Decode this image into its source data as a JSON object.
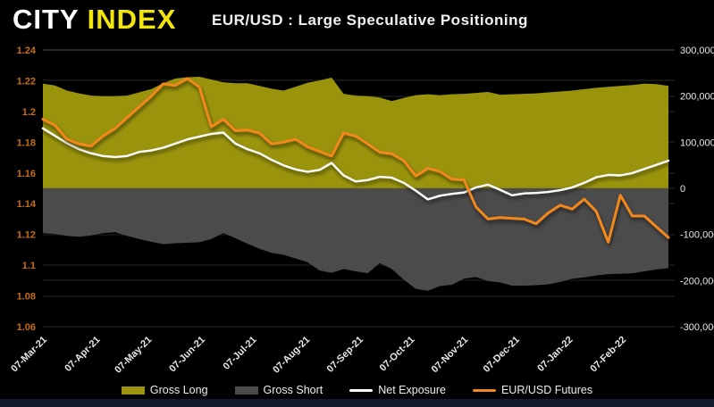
{
  "header": {
    "logo_part1": "CITY ",
    "logo_part2": "INDEX",
    "title": "EUR/USD : Large Speculative Positioning"
  },
  "colors": {
    "background": "#000000",
    "logo_white": "#FFFFFF",
    "logo_yellow": "#F2E50B",
    "gross_long": "#9A9410",
    "gross_short": "#4B4B4B",
    "net_exposure": "#FFFFFF",
    "eurusd_futures": "#F2871E",
    "left_axis_labels": "#C76E11",
    "right_axis_labels": "#E8E8E8",
    "x_axis_labels": "#E8E8E8",
    "gridline": "#2B2B2B",
    "top_gridline": "#4F4F4F",
    "bottom_bar": "#121A2D"
  },
  "legend": {
    "items": [
      {
        "label": "Gross Long",
        "swatch": "area",
        "color": "#9A9410"
      },
      {
        "label": "Gross Short",
        "swatch": "area",
        "color": "#4B4B4B"
      },
      {
        "label": "Net Exposure",
        "swatch": "line",
        "color": "#FFFFFF"
      },
      {
        "label": "EUR/USD Futures",
        "swatch": "line",
        "color": "#F2871E"
      }
    ]
  },
  "chart_data": {
    "type": "combo",
    "title": "EUR/USD : Large Speculative Positioning",
    "x_frequency": "weekly",
    "x_tick_labels": [
      "07-Mar-21",
      "07-Apr-21",
      "07-May-21",
      "07-Jun-21",
      "07-Jul-21",
      "07-Aug-21",
      "07-Sep-21",
      "07-Oct-21",
      "07-Nov-21",
      "07-Dec-21",
      "07-Jan-22",
      "07-Feb-22"
    ],
    "x_tick_positions": [
      0,
      0.0852,
      0.1676,
      0.2527,
      0.3352,
      0.4203,
      0.5055,
      0.5879,
      0.6731,
      0.7555,
      0.8407,
      0.9258
    ],
    "left_axis": {
      "ticks": [
        "1.24",
        "1.22",
        "1.2",
        "1.18",
        "1.16",
        "1.14",
        "1.12",
        "1.1",
        "1.08",
        "1.06"
      ],
      "tick_values": [
        1.24,
        1.22,
        1.2,
        1.18,
        1.16,
        1.14,
        1.12,
        1.1,
        1.08,
        1.06
      ],
      "min": 1.06,
      "max": 1.24,
      "applies_to": "EUR/USD Futures"
    },
    "right_axis": {
      "ticks": [
        "300,000",
        "200,000",
        "100,000",
        "0",
        "-100,000",
        "-200,000",
        "-300,000"
      ],
      "tick_values": [
        300000,
        200000,
        100000,
        0,
        -100000,
        -200000,
        -300000
      ],
      "min": -300000,
      "max": 300000,
      "applies_to": "Gross Long, Gross Short, Net Exposure"
    },
    "grid": true,
    "legend_position": "bottom",
    "series": [
      {
        "name": "Gross Long",
        "type": "area",
        "axis": "right",
        "color": "#9A9410",
        "values": [
          227000,
          223000,
          212000,
          206000,
          201000,
          200000,
          200000,
          201000,
          208000,
          215000,
          228000,
          238000,
          241000,
          242000,
          236000,
          230000,
          228000,
          228000,
          222000,
          216000,
          212000,
          220000,
          229000,
          234000,
          240000,
          205000,
          201000,
          200000,
          197000,
          189000,
          196000,
          202000,
          204000,
          202000,
          204000,
          205000,
          207000,
          209000,
          203000,
          204000,
          205000,
          206000,
          208000,
          210000,
          212000,
          215000,
          218000,
          220000,
          222000,
          224000,
          227000,
          226000,
          222000
        ]
      },
      {
        "name": "Gross Short",
        "type": "area",
        "axis": "right",
        "color": "#4B4B4B",
        "values": [
          -97000,
          -99000,
          -103000,
          -105000,
          -102000,
          -97000,
          -95000,
          -103000,
          -110000,
          -116000,
          -121000,
          -119000,
          -118000,
          -117000,
          -110000,
          -97000,
          -108000,
          -120000,
          -131000,
          -140000,
          -144000,
          -152000,
          -160000,
          -178000,
          -183000,
          -175000,
          -180000,
          -184000,
          -162000,
          -175000,
          -198000,
          -218000,
          -222000,
          -212000,
          -209000,
          -196000,
          -192000,
          -201000,
          -204000,
          -211000,
          -211000,
          -210000,
          -208000,
          -203000,
          -196000,
          -193000,
          -189000,
          -186000,
          -185000,
          -184000,
          -180000,
          -176000,
          -173000
        ]
      },
      {
        "name": "Net Exposure",
        "type": "line",
        "axis": "right",
        "color": "#FFFFFF",
        "values": [
          130000,
          114000,
          98000,
          85000,
          76000,
          70000,
          68000,
          70000,
          79000,
          82000,
          88000,
          97000,
          106000,
          112000,
          118000,
          121000,
          97000,
          85000,
          76000,
          62000,
          50000,
          41000,
          36000,
          40000,
          55000,
          28000,
          15000,
          18000,
          25000,
          23000,
          12000,
          -5000,
          -24000,
          -16000,
          -12000,
          -9000,
          2000,
          8000,
          -3000,
          -15000,
          -11000,
          -10000,
          -8000,
          -4000,
          2000,
          12000,
          24000,
          29000,
          28000,
          33000,
          42000,
          51000,
          60000
        ]
      },
      {
        "name": "EUR/USD Futures",
        "type": "line",
        "axis": "left",
        "color": "#F2871E",
        "values": [
          1.195,
          1.191,
          1.182,
          1.179,
          1.1775,
          1.184,
          1.189,
          1.196,
          1.203,
          1.21,
          1.218,
          1.217,
          1.2215,
          1.216,
          1.19,
          1.195,
          1.1875,
          1.188,
          1.186,
          1.179,
          1.18,
          1.182,
          1.177,
          1.174,
          1.171,
          1.186,
          1.184,
          1.179,
          1.1735,
          1.1725,
          1.168,
          1.158,
          1.163,
          1.161,
          1.156,
          1.1555,
          1.138,
          1.13,
          1.131,
          1.1305,
          1.13,
          1.127,
          1.134,
          1.139,
          1.1365,
          1.143,
          1.135,
          1.115,
          1.1455,
          1.132,
          1.132,
          1.125,
          1.118
        ]
      }
    ]
  }
}
